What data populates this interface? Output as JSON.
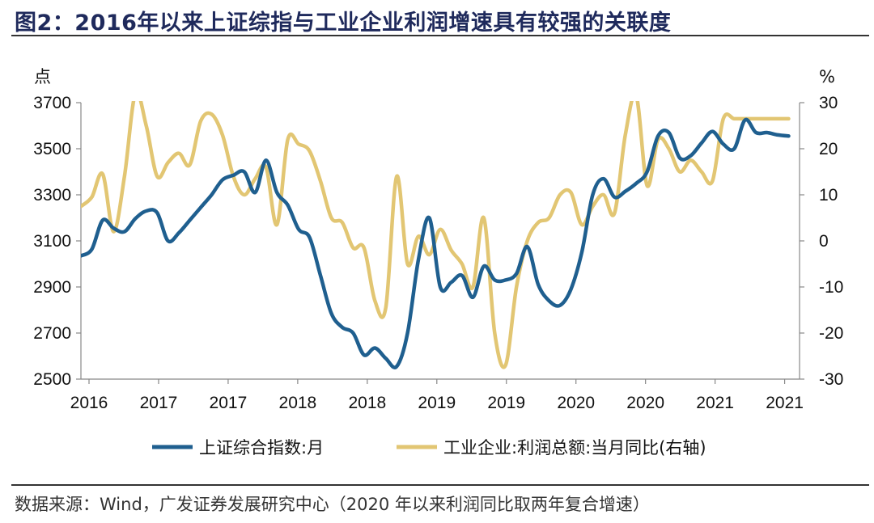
{
  "title": "图2：2016年以来上证综指与工业企业利润增速具有较强的关联度",
  "source": "数据来源：Wind，广发证券发展研究中心（2020 年以来利润同比取两年复合增速）",
  "chart_data": {
    "type": "line",
    "left_axis_unit": "点",
    "right_axis_unit": "%",
    "left_ylim": [
      2500,
      3700
    ],
    "right_ylim": [
      -30,
      30
    ],
    "left_ticks": [
      "3700",
      "3500",
      "3300",
      "3100",
      "2900",
      "2700",
      "2500"
    ],
    "right_ticks": [
      "30",
      "20",
      "10",
      "0",
      "-10",
      "-20",
      "-30"
    ],
    "x_tick_labels": [
      "2016",
      "2017",
      "2017",
      "2018",
      "2018",
      "2019",
      "2019",
      "2020",
      "2020",
      "2021",
      "2021"
    ],
    "xlim": [
      0,
      66
    ],
    "grid": false,
    "legend_position": "bottom",
    "series": [
      {
        "name": "上证综合指数:月",
        "axis": "left",
        "color": "#1f5f8f",
        "x": [
          0,
          1,
          2,
          3,
          4,
          5,
          6,
          7,
          8,
          9,
          10,
          11,
          12,
          13,
          14,
          15,
          16,
          17,
          18,
          19,
          20,
          21,
          22,
          23,
          24,
          25,
          26,
          27,
          28,
          29,
          30,
          31,
          32,
          33,
          34,
          35,
          36,
          37,
          38,
          39,
          40,
          41,
          42,
          43,
          44,
          45,
          46,
          47,
          48,
          49,
          50,
          51,
          52,
          53,
          54,
          55,
          56,
          57,
          58,
          59,
          60,
          61,
          62,
          63,
          64,
          65
        ],
        "values": [
          3035,
          3064,
          3190,
          3155,
          3140,
          3197,
          3230,
          3222,
          3100,
          3135,
          3190,
          3245,
          3300,
          3365,
          3385,
          3400,
          3310,
          3450,
          3310,
          3255,
          3150,
          3115,
          2950,
          2785,
          2725,
          2700,
          2605,
          2635,
          2590,
          2555,
          2700,
          3020,
          3200,
          2900,
          2920,
          2950,
          2855,
          2990,
          2930,
          2930,
          2958,
          3075,
          2910,
          2840,
          2820,
          2890,
          3050,
          3300,
          3370,
          3290,
          3315,
          3350,
          3400,
          3555,
          3570,
          3460,
          3470,
          3525,
          3575,
          3520,
          3500,
          3625,
          3570,
          3570,
          3560,
          3555
        ]
      },
      {
        "name": "工业企业:利润总额:当月同比(右轴)",
        "axis": "right",
        "color": "#e2c673",
        "x": [
          0,
          1,
          2,
          3,
          4,
          5,
          6,
          7,
          8,
          9,
          10,
          11,
          12,
          13,
          14,
          15,
          16,
          17,
          18,
          19,
          20,
          21,
          22,
          23,
          24,
          25,
          26,
          27,
          28,
          29,
          30,
          31,
          32,
          33,
          34,
          35,
          36,
          37,
          38,
          39,
          40,
          41,
          42,
          43,
          44,
          45,
          46,
          47,
          48,
          49,
          50,
          51,
          52,
          53,
          54,
          55,
          56,
          57,
          58,
          59,
          60,
          61,
          62,
          63,
          64,
          65
        ],
        "values": [
          7.5,
          9.5,
          14.5,
          2,
          14,
          32,
          25,
          14,
          17,
          19,
          16.5,
          26,
          27.5,
          23,
          14,
          10,
          13.5,
          16,
          3.5,
          22,
          21,
          19.5,
          13,
          5,
          4,
          -1.5,
          -1.5,
          -13,
          -14.5,
          14,
          -5,
          1,
          -3,
          2.5,
          -2,
          -5,
          -10,
          5,
          -20,
          -27,
          -10,
          0,
          4,
          5,
          10,
          10.5,
          3.5,
          7.5,
          10,
          6,
          23,
          31.5,
          12,
          22,
          20,
          15,
          17.5,
          15,
          13,
          26.5,
          26.5,
          26.5,
          26.5,
          26.5,
          26.5,
          26.5
        ]
      }
    ]
  }
}
